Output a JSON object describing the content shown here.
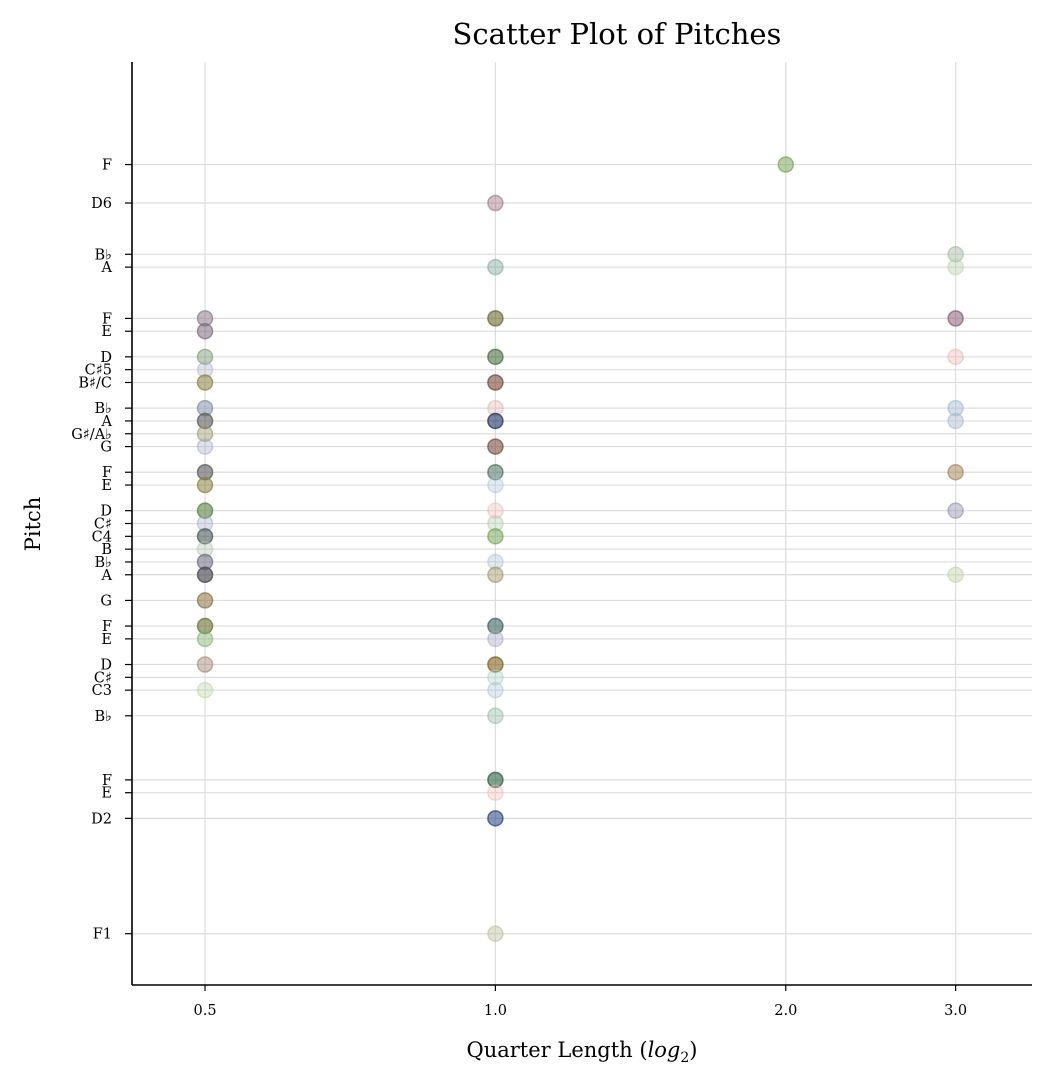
{
  "chart_data": {
    "type": "scatter",
    "title": "Scatter Plot of Pitches",
    "xlabel": "Quarter Length (log2)",
    "ylabel": "Pitch",
    "x_scale": "log2",
    "x_ticks": [
      {
        "value": 0.5,
        "label": "0.5"
      },
      {
        "value": 1.0,
        "label": "1.0"
      },
      {
        "value": 2.0,
        "label": "2.0"
      },
      {
        "value": 3.0,
        "label": "3.0"
      }
    ],
    "xlim": [
      0.42,
      3.6
    ],
    "ylim": [
      25,
      97
    ],
    "grid": true,
    "y_ticks": [
      {
        "midi": 29,
        "label": "F1"
      },
      {
        "midi": 38,
        "label": "D2"
      },
      {
        "midi": 40,
        "label": "E"
      },
      {
        "midi": 41,
        "label": "F"
      },
      {
        "midi": 46,
        "label": "B♭"
      },
      {
        "midi": 48,
        "label": "C3"
      },
      {
        "midi": 49,
        "label": "C♯"
      },
      {
        "midi": 50,
        "label": "D"
      },
      {
        "midi": 52,
        "label": "E"
      },
      {
        "midi": 53,
        "label": "F"
      },
      {
        "midi": 55,
        "label": "G"
      },
      {
        "midi": 57,
        "label": "A"
      },
      {
        "midi": 58,
        "label": "B♭"
      },
      {
        "midi": 59,
        "label": "B"
      },
      {
        "midi": 60,
        "label": "C4"
      },
      {
        "midi": 61,
        "label": "C♯"
      },
      {
        "midi": 62,
        "label": "D"
      },
      {
        "midi": 64,
        "label": "E"
      },
      {
        "midi": 65,
        "label": "F"
      },
      {
        "midi": 67,
        "label": "G"
      },
      {
        "midi": 68,
        "label": "G♯/A♭"
      },
      {
        "midi": 69,
        "label": "A"
      },
      {
        "midi": 70,
        "label": "B♭"
      },
      {
        "midi": 72,
        "label": "B♯/C"
      },
      {
        "midi": 73,
        "label": "C♯5"
      },
      {
        "midi": 74,
        "label": "D"
      },
      {
        "midi": 76,
        "label": "E"
      },
      {
        "midi": 77,
        "label": "F"
      },
      {
        "midi": 81,
        "label": "A"
      },
      {
        "midi": 82,
        "label": "B♭"
      },
      {
        "midi": 86,
        "label": "D6"
      },
      {
        "midi": 89,
        "label": "F"
      }
    ],
    "points": [
      {
        "x": 0.5,
        "y": 77,
        "color": "#8a7a8a",
        "alpha": 0.55
      },
      {
        "x": 0.5,
        "y": 76,
        "color": "#7a6a7a",
        "alpha": 0.55
      },
      {
        "x": 0.5,
        "y": 74,
        "color": "#7fa07a",
        "alpha": 0.5
      },
      {
        "x": 0.5,
        "y": 73,
        "color": "#a8b0c8",
        "alpha": 0.35
      },
      {
        "x": 0.5,
        "y": 72,
        "color": "#8a8040",
        "alpha": 0.55
      },
      {
        "x": 0.5,
        "y": 70,
        "color": "#7a8aa0",
        "alpha": 0.5
      },
      {
        "x": 0.5,
        "y": 69,
        "color": "#5a5a5a",
        "alpha": 0.6
      },
      {
        "x": 0.5,
        "y": 68,
        "color": "#9a9a6a",
        "alpha": 0.45
      },
      {
        "x": 0.5,
        "y": 67,
        "color": "#a0a8c0",
        "alpha": 0.35
      },
      {
        "x": 0.5,
        "y": 65,
        "color": "#5a5a5a",
        "alpha": 0.6
      },
      {
        "x": 0.5,
        "y": 64,
        "color": "#8a8040",
        "alpha": 0.55
      },
      {
        "x": 0.5,
        "y": 62,
        "color": "#5a8040",
        "alpha": 0.6
      },
      {
        "x": 0.5,
        "y": 61,
        "color": "#a0a8c8",
        "alpha": 0.35
      },
      {
        "x": 0.5,
        "y": 60,
        "color": "#4a5a5a",
        "alpha": 0.6
      },
      {
        "x": 0.5,
        "y": 59,
        "color": "#a8c0a8",
        "alpha": 0.35
      },
      {
        "x": 0.5,
        "y": 58,
        "color": "#6a6a80",
        "alpha": 0.55
      },
      {
        "x": 0.5,
        "y": 57,
        "color": "#4a4a50",
        "alpha": 0.65
      },
      {
        "x": 0.5,
        "y": 55,
        "color": "#8a7040",
        "alpha": 0.55
      },
      {
        "x": 0.5,
        "y": 53,
        "color": "#6a7030",
        "alpha": 0.6
      },
      {
        "x": 0.5,
        "y": 52,
        "color": "#80b070",
        "alpha": 0.45
      },
      {
        "x": 0.5,
        "y": 50,
        "color": "#a08070",
        "alpha": 0.45
      },
      {
        "x": 0.5,
        "y": 48,
        "color": "#b8d0a0",
        "alpha": 0.35
      },
      {
        "x": 1.0,
        "y": 86,
        "color": "#a07080",
        "alpha": 0.45
      },
      {
        "x": 1.0,
        "y": 81,
        "color": "#80a8a0",
        "alpha": 0.45
      },
      {
        "x": 1.0,
        "y": 77,
        "color": "#6a6a30",
        "alpha": 0.6
      },
      {
        "x": 1.0,
        "y": 74,
        "color": "#4a7040",
        "alpha": 0.6
      },
      {
        "x": 1.0,
        "y": 72,
        "color": "#7a4a3a",
        "alpha": 0.6
      },
      {
        "x": 1.0,
        "y": 70,
        "color": "#e0b0a8",
        "alpha": 0.35
      },
      {
        "x": 1.0,
        "y": 69,
        "color": "#203060",
        "alpha": 0.6
      },
      {
        "x": 1.0,
        "y": 67,
        "color": "#7a5040",
        "alpha": 0.6
      },
      {
        "x": 1.0,
        "y": 65,
        "color": "#4a7060",
        "alpha": 0.55
      },
      {
        "x": 1.0,
        "y": 64,
        "color": "#a8c0d8",
        "alpha": 0.35
      },
      {
        "x": 1.0,
        "y": 62,
        "color": "#e8b8b0",
        "alpha": 0.35
      },
      {
        "x": 1.0,
        "y": 61,
        "color": "#b0c8a8",
        "alpha": 0.35
      },
      {
        "x": 1.0,
        "y": 60,
        "color": "#70a050",
        "alpha": 0.5
      },
      {
        "x": 1.0,
        "y": 58,
        "color": "#a8c0d0",
        "alpha": 0.35
      },
      {
        "x": 1.0,
        "y": 57,
        "color": "#a09060",
        "alpha": 0.45
      },
      {
        "x": 1.0,
        "y": 53,
        "color": "#406060",
        "alpha": 0.6
      },
      {
        "x": 1.0,
        "y": 52,
        "color": "#a8a8c8",
        "alpha": 0.4
      },
      {
        "x": 1.0,
        "y": 50,
        "color": "#806020",
        "alpha": 0.6
      },
      {
        "x": 1.0,
        "y": 49,
        "color": "#a8d0c8",
        "alpha": 0.35
      },
      {
        "x": 1.0,
        "y": 48,
        "color": "#a8c0d8",
        "alpha": 0.35
      },
      {
        "x": 1.0,
        "y": 46,
        "color": "#90b8a0",
        "alpha": 0.4
      },
      {
        "x": 1.0,
        "y": 41,
        "color": "#2a6040",
        "alpha": 0.6
      },
      {
        "x": 1.0,
        "y": 40,
        "color": "#f0b8b0",
        "alpha": 0.35
      },
      {
        "x": 1.0,
        "y": 38,
        "color": "#204080",
        "alpha": 0.55
      },
      {
        "x": 1.0,
        "y": 29,
        "color": "#c0c0a0",
        "alpha": 0.45
      },
      {
        "x": 2.0,
        "y": 89,
        "color": "#70a050",
        "alpha": 0.5
      },
      {
        "x": 3.0,
        "y": 82,
        "color": "#a0b8a0",
        "alpha": 0.45
      },
      {
        "x": 3.0,
        "y": 81,
        "color": "#b8d0a8",
        "alpha": 0.4
      },
      {
        "x": 3.0,
        "y": 77,
        "color": "#805070",
        "alpha": 0.5
      },
      {
        "x": 3.0,
        "y": 74,
        "color": "#e8b0a8",
        "alpha": 0.35
      },
      {
        "x": 3.0,
        "y": 70,
        "color": "#a0b8d0",
        "alpha": 0.45
      },
      {
        "x": 3.0,
        "y": 69,
        "color": "#a8b8d0",
        "alpha": 0.45
      },
      {
        "x": 3.0,
        "y": 65,
        "color": "#a08050",
        "alpha": 0.5
      },
      {
        "x": 3.0,
        "y": 62,
        "color": "#9090b0",
        "alpha": 0.45
      },
      {
        "x": 3.0,
        "y": 57,
        "color": "#b8d0a0",
        "alpha": 0.4
      }
    ]
  }
}
